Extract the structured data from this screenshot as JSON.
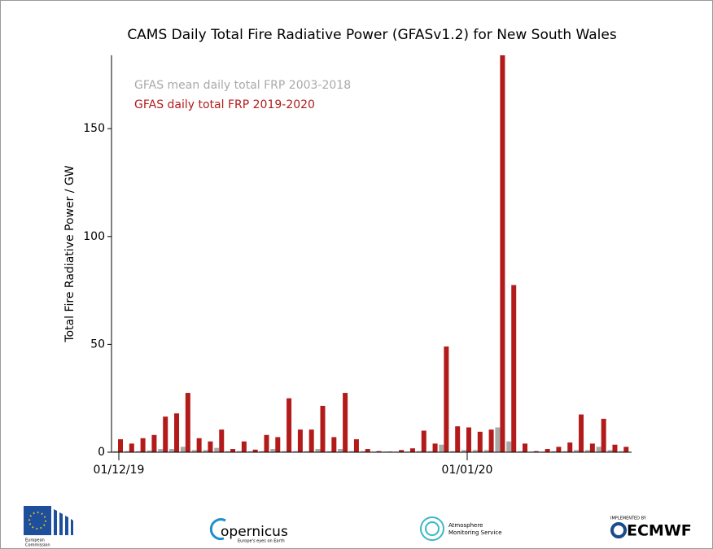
{
  "chart_data": {
    "type": "bar",
    "title": "CAMS Daily Total Fire Radiative Power (GFASv1.2) for New South Wales",
    "ylabel": "Total Fire Radiative Power / GW",
    "categories": [
      "01/12/19",
      null,
      null,
      null,
      null,
      null,
      null,
      null,
      null,
      null,
      null,
      null,
      null,
      null,
      null,
      null,
      null,
      null,
      null,
      null,
      null,
      null,
      null,
      null,
      null,
      null,
      null,
      null,
      null,
      null,
      null,
      "01/01/20",
      null,
      null,
      null,
      null,
      null,
      null,
      null,
      null,
      null,
      null,
      null,
      null,
      null,
      null
    ],
    "series": [
      {
        "name": "GFAS mean daily total FRP 2003-2018",
        "color": "#a9a9a9",
        "values": [
          0.5,
          0.5,
          0.5,
          0.8,
          1.5,
          1.5,
          2.5,
          1,
          1,
          2,
          0.5,
          0.5,
          0.5,
          0.5,
          1.5,
          0.5,
          0.5,
          0.5,
          1.5,
          0.5,
          1.5,
          0.5,
          0.5,
          0.3,
          0.3,
          0.3,
          0.3,
          0.5,
          0.5,
          3.5,
          0.5,
          1,
          1,
          1,
          11.5,
          5,
          0.5,
          0.3,
          0.3,
          0.5,
          0.5,
          1,
          1,
          2.5,
          1,
          0.5
        ]
      },
      {
        "name": "GFAS daily total FRP 2019-2020",
        "color": "#b31b1b",
        "values": [
          6,
          4,
          6.5,
          8,
          16.5,
          18,
          27.5,
          6.5,
          5,
          10.5,
          1.5,
          5,
          1.2,
          8,
          7,
          25,
          10.5,
          10.5,
          21.5,
          7,
          27.5,
          6,
          1.5,
          0.5,
          0.3,
          1,
          1.8,
          10,
          4,
          49,
          12,
          11.5,
          9.5,
          10.5,
          185,
          77.5,
          4,
          0.5,
          1.5,
          2.5,
          4.5,
          17.5,
          4,
          15.5,
          3.5,
          2.5
        ]
      }
    ],
    "ylim": [
      0,
      184
    ],
    "yticks": [
      0,
      50,
      100,
      150
    ],
    "legend": "upper-left"
  },
  "footer": {
    "ec": [
      "European",
      "Commission"
    ],
    "copernicus": "opernicus",
    "copernicus_tagline": "Europe's eyes on Earth",
    "cams": [
      "Atmosphere",
      "Monitoring Service"
    ],
    "implemented": "IMPLEMENTED BY",
    "ecmwf": "ECMWF"
  }
}
